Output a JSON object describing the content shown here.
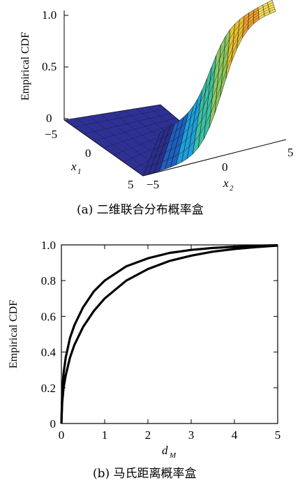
{
  "chart_data": [
    {
      "type": "surface",
      "caption": "(a)  二维联合分布概率盒",
      "zlabel": "Empirical CDF",
      "xlabel": "x",
      "xlabel_sub": "1",
      "ylabel": "x",
      "ylabel_sub": "2",
      "x_ticks": [
        "−5",
        "0",
        "5"
      ],
      "y_ticks": [
        "−5",
        "0",
        "5"
      ],
      "z_ticks": [
        "1.0",
        "0.5",
        "0"
      ],
      "xlim": [
        -5,
        5
      ],
      "ylim": [
        -5,
        5
      ],
      "zlim": [
        0,
        1
      ],
      "colormap": [
        "#2b2e8c",
        "#1f5fbf",
        "#1e9fd8",
        "#3cbfa0",
        "#8cc860",
        "#e8c030",
        "#f0a030",
        "#f8e058"
      ]
    },
    {
      "type": "line",
      "caption": "(b)  马氏距离概率盒",
      "ylabel": "Empirical CDF",
      "xlabel": "d",
      "xlabel_sub": "M",
      "x_ticks": [
        "0",
        "1",
        "2",
        "3",
        "4",
        "5"
      ],
      "y_ticks": [
        "0",
        "0.2",
        "0.4",
        "0.6",
        "0.8",
        "1.0"
      ],
      "xlim": [
        0,
        5
      ],
      "ylim": [
        0,
        1
      ],
      "series": [
        {
          "x": [
            0,
            0.02,
            0.05,
            0.1,
            0.2,
            0.3,
            0.5,
            0.75,
            1,
            1.5,
            2,
            2.5,
            3,
            3.5,
            4,
            4.5,
            5
          ],
          "y": [
            0,
            0.18,
            0.28,
            0.37,
            0.48,
            0.55,
            0.65,
            0.74,
            0.8,
            0.88,
            0.925,
            0.955,
            0.972,
            0.983,
            0.99,
            0.995,
            0.998
          ]
        },
        {
          "x": [
            0,
            0.02,
            0.05,
            0.1,
            0.2,
            0.3,
            0.5,
            0.75,
            1,
            1.5,
            2,
            2.5,
            3,
            3.5,
            4,
            4.5,
            5
          ],
          "y": [
            0,
            0.12,
            0.2,
            0.27,
            0.37,
            0.44,
            0.54,
            0.63,
            0.7,
            0.8,
            0.865,
            0.91,
            0.94,
            0.962,
            0.977,
            0.988,
            0.996
          ]
        }
      ]
    }
  ]
}
